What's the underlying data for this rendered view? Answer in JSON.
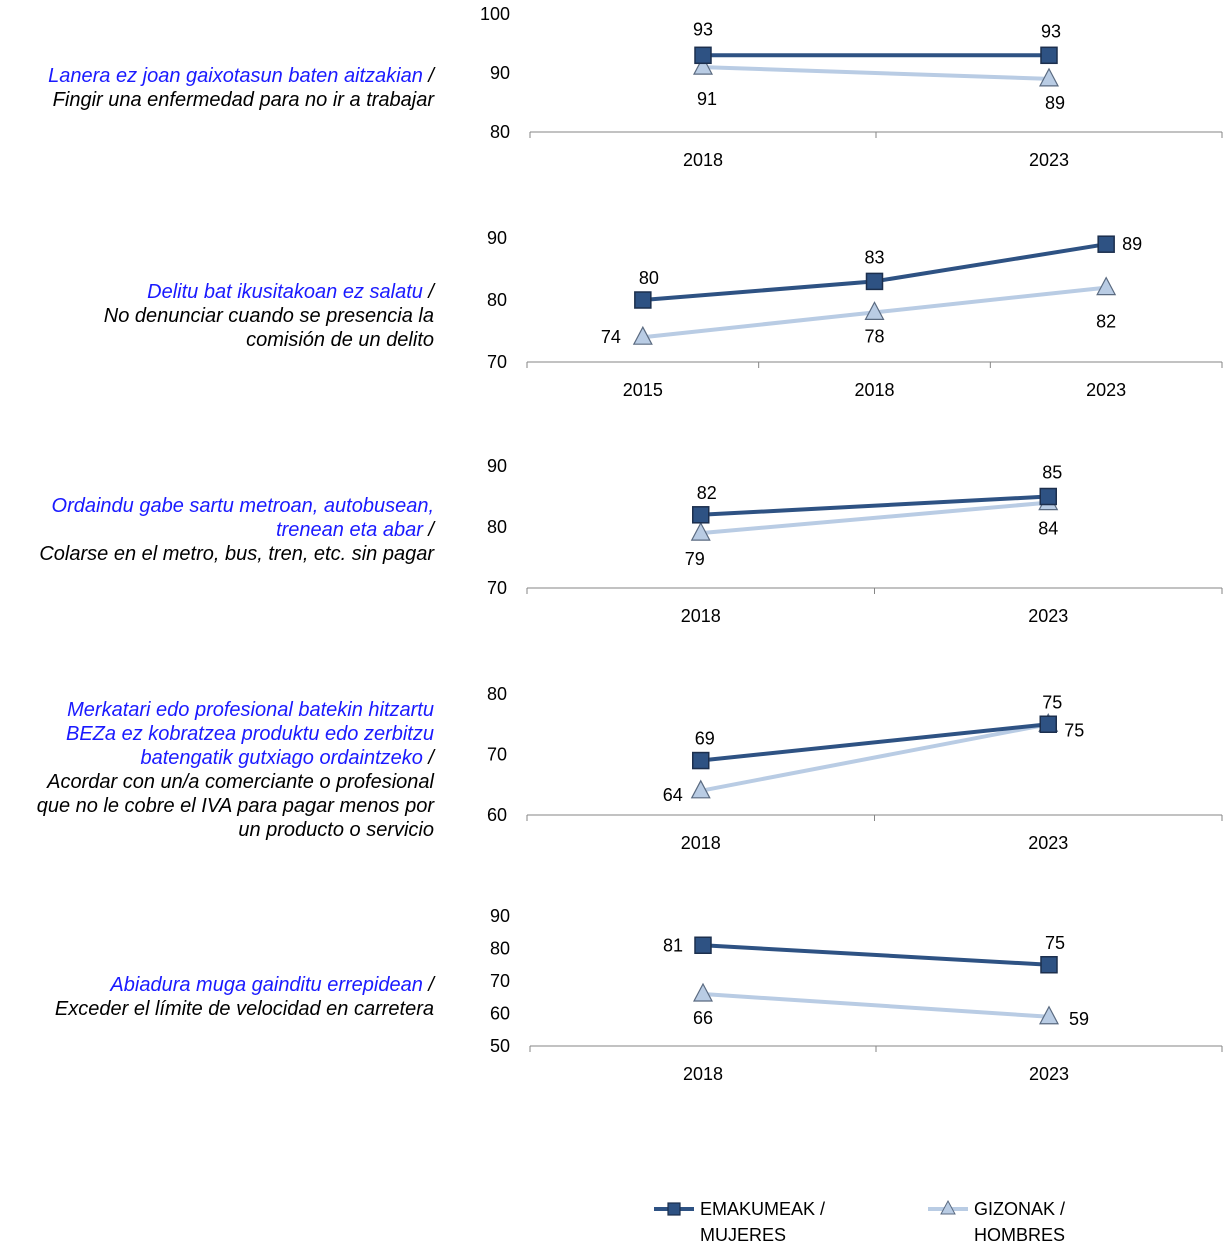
{
  "chart_data": [
    {
      "type": "line",
      "label_eu": "Lanera ez joan gaixotasun baten aitzakian",
      "label_es": "Fingir una enfermedad para no ir a trabajar",
      "categories": [
        "2018",
        "2023"
      ],
      "ylim": [
        80,
        100
      ],
      "yticks": [
        "80",
        "90",
        "100"
      ],
      "series": [
        {
          "name": "EMAKUMEAK / MUJERES",
          "values": [
            93,
            93
          ]
        },
        {
          "name": "GIZONAK / HOMBRES",
          "values": [
            91,
            89
          ]
        }
      ]
    },
    {
      "type": "line",
      "label_eu": "Delitu bat ikusitakoan ez salatu",
      "label_es": "No denunciar cuando se presencia la comisión de un delito",
      "categories": [
        "2015",
        "2018",
        "2023"
      ],
      "ylim": [
        70,
        90
      ],
      "yticks": [
        "70",
        "80",
        "90"
      ],
      "series": [
        {
          "name": "EMAKUMEAK / MUJERES",
          "values": [
            80,
            83,
            89
          ]
        },
        {
          "name": "GIZONAK / HOMBRES",
          "values": [
            74,
            78,
            82
          ]
        }
      ]
    },
    {
      "type": "line",
      "label_eu": "Ordaindu gabe sartu metroan, autobusean, trenean eta abar",
      "label_es": "Colarse en el metro, bus, tren, etc. sin pagar",
      "categories": [
        "2018",
        "2023"
      ],
      "ylim": [
        70,
        90
      ],
      "yticks": [
        "70",
        "80",
        "90"
      ],
      "series": [
        {
          "name": "EMAKUMEAK / MUJERES",
          "values": [
            82,
            85
          ]
        },
        {
          "name": "GIZONAK / HOMBRES",
          "values": [
            79,
            84
          ]
        }
      ]
    },
    {
      "type": "line",
      "label_eu": "Merkatari edo profesional batekin hitzartu BEZa ez kobratzea produktu edo zerbitzu batengatik gutxiago ordaintzeko",
      "label_es": "Acordar con un/a comerciante o profesional que no le cobre el IVA para pagar menos por un producto o servicio",
      "categories": [
        "2018",
        "2023"
      ],
      "ylim": [
        60,
        80
      ],
      "yticks": [
        "60",
        "70",
        "80"
      ],
      "series": [
        {
          "name": "EMAKUMEAK / MUJERES",
          "values": [
            69,
            75
          ]
        },
        {
          "name": "GIZONAK / HOMBRES",
          "values": [
            64,
            75
          ]
        }
      ]
    },
    {
      "type": "line",
      "label_eu": "Abiadura muga gainditu errepidean",
      "label_es": "Exceder el límite de velocidad en carretera",
      "categories": [
        "2018",
        "2023"
      ],
      "ylim": [
        50,
        90
      ],
      "yticks": [
        "50",
        "60",
        "70",
        "80",
        "90"
      ],
      "series": [
        {
          "name": "EMAKUMEAK / MUJERES",
          "values": [
            81,
            75
          ]
        },
        {
          "name": "GIZONAK / HOMBRES",
          "values": [
            66,
            59
          ]
        }
      ]
    }
  ],
  "legend": {
    "placement": "bottom",
    "items": [
      {
        "line1": "EMAKUMEAK /",
        "line2": "MUJERES",
        "marker": "square",
        "color": "#2e5283",
        "fill": "#2e5283"
      },
      {
        "line1": "GIZONAK /",
        "line2": "HOMBRES",
        "marker": "triangle",
        "color": "#b9cce4",
        "fill": "#b9cce4"
      }
    ]
  },
  "colors": {
    "mujeres": "#2e5283",
    "hombres": "#b9cce4",
    "axis": "#868686"
  }
}
